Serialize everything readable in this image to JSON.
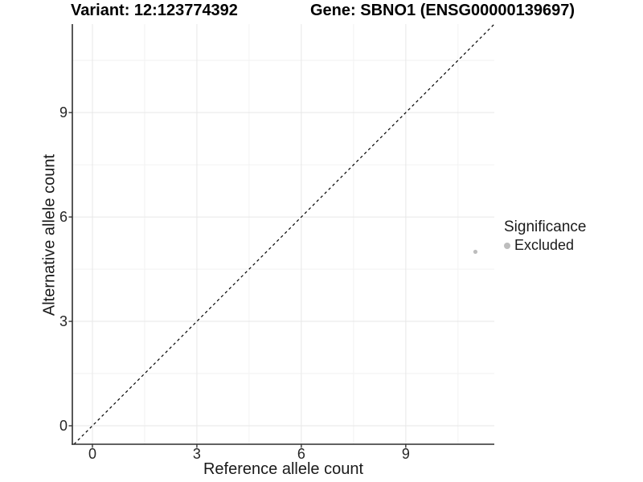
{
  "chart_data": {
    "type": "scatter",
    "title_left": "Variant: 12:123774392",
    "title_right": "Gene: SBNO1 (ENSG00000139697)",
    "xlabel": "Reference allele count",
    "ylabel": "Alternative allele count",
    "xlim": [
      -0.577,
      11.543
    ],
    "ylim": [
      -0.531,
      11.543
    ],
    "xticks": [
      0,
      3,
      6,
      9
    ],
    "yticks": [
      0,
      3,
      6,
      9
    ],
    "x_minor_ticks": [
      1.5,
      4.5,
      7.5,
      10.5
    ],
    "y_minor_ticks": [
      1.5,
      4.5,
      7.5,
      10.5
    ],
    "grid": true,
    "identity_line": {
      "slope": 1,
      "intercept": 0,
      "linetype": "dashed",
      "color": "#000000"
    },
    "series": [
      {
        "name": "Excluded",
        "color": "#bdbdbd",
        "points": [
          {
            "x": 11,
            "y": 5
          }
        ]
      }
    ],
    "legend": {
      "title": "Significance",
      "position": "right",
      "items": [
        {
          "label": "Excluded",
          "color": "#bdbdbd"
        }
      ]
    },
    "colors": {
      "grid_major": "#e7e7e7",
      "grid_minor": "#f2f2f2",
      "axis_line": "#2e2e2e",
      "tick_mark": "#333333",
      "tick_label": "#262626",
      "title": "#000000",
      "background": "#ffffff"
    }
  }
}
